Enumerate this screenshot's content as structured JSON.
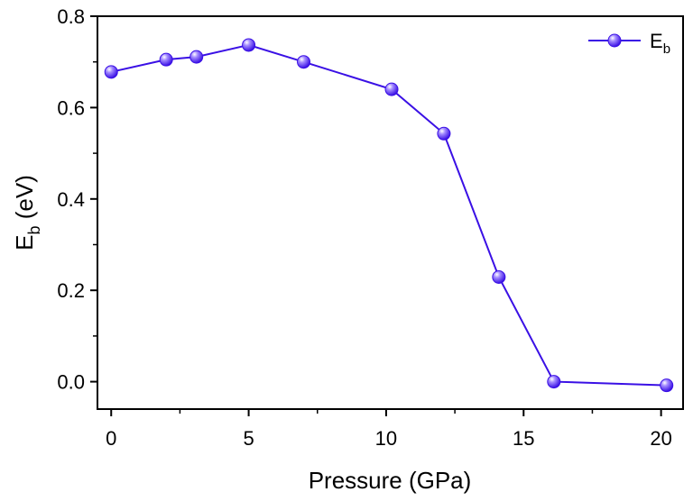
{
  "chart_data": {
    "type": "line",
    "xlabel": "Pressure (GPa)",
    "ylabel_main": "E",
    "ylabel_sub": "b",
    "ylabel_unit": " (eV)",
    "xlim": [
      -0.5,
      20.8
    ],
    "ylim": [
      -0.06,
      0.8
    ],
    "xticks": [
      "0",
      "5",
      "10",
      "15",
      "20"
    ],
    "yticks": [
      "0.0",
      "0.2",
      "0.4",
      "0.6",
      "0.8"
    ],
    "grid": false,
    "legend_position": "top-right",
    "series": [
      {
        "name_main": "E",
        "name_sub": "b",
        "color": "#3a10e5",
        "marker": "circle",
        "x": [
          0,
          2,
          3.1,
          5,
          7,
          10.2,
          12.1,
          14.1,
          16.1,
          20.2
        ],
        "y": [
          0.678,
          0.705,
          0.711,
          0.737,
          0.7,
          0.64,
          0.543,
          0.229,
          0.0,
          -0.008
        ]
      }
    ]
  }
}
